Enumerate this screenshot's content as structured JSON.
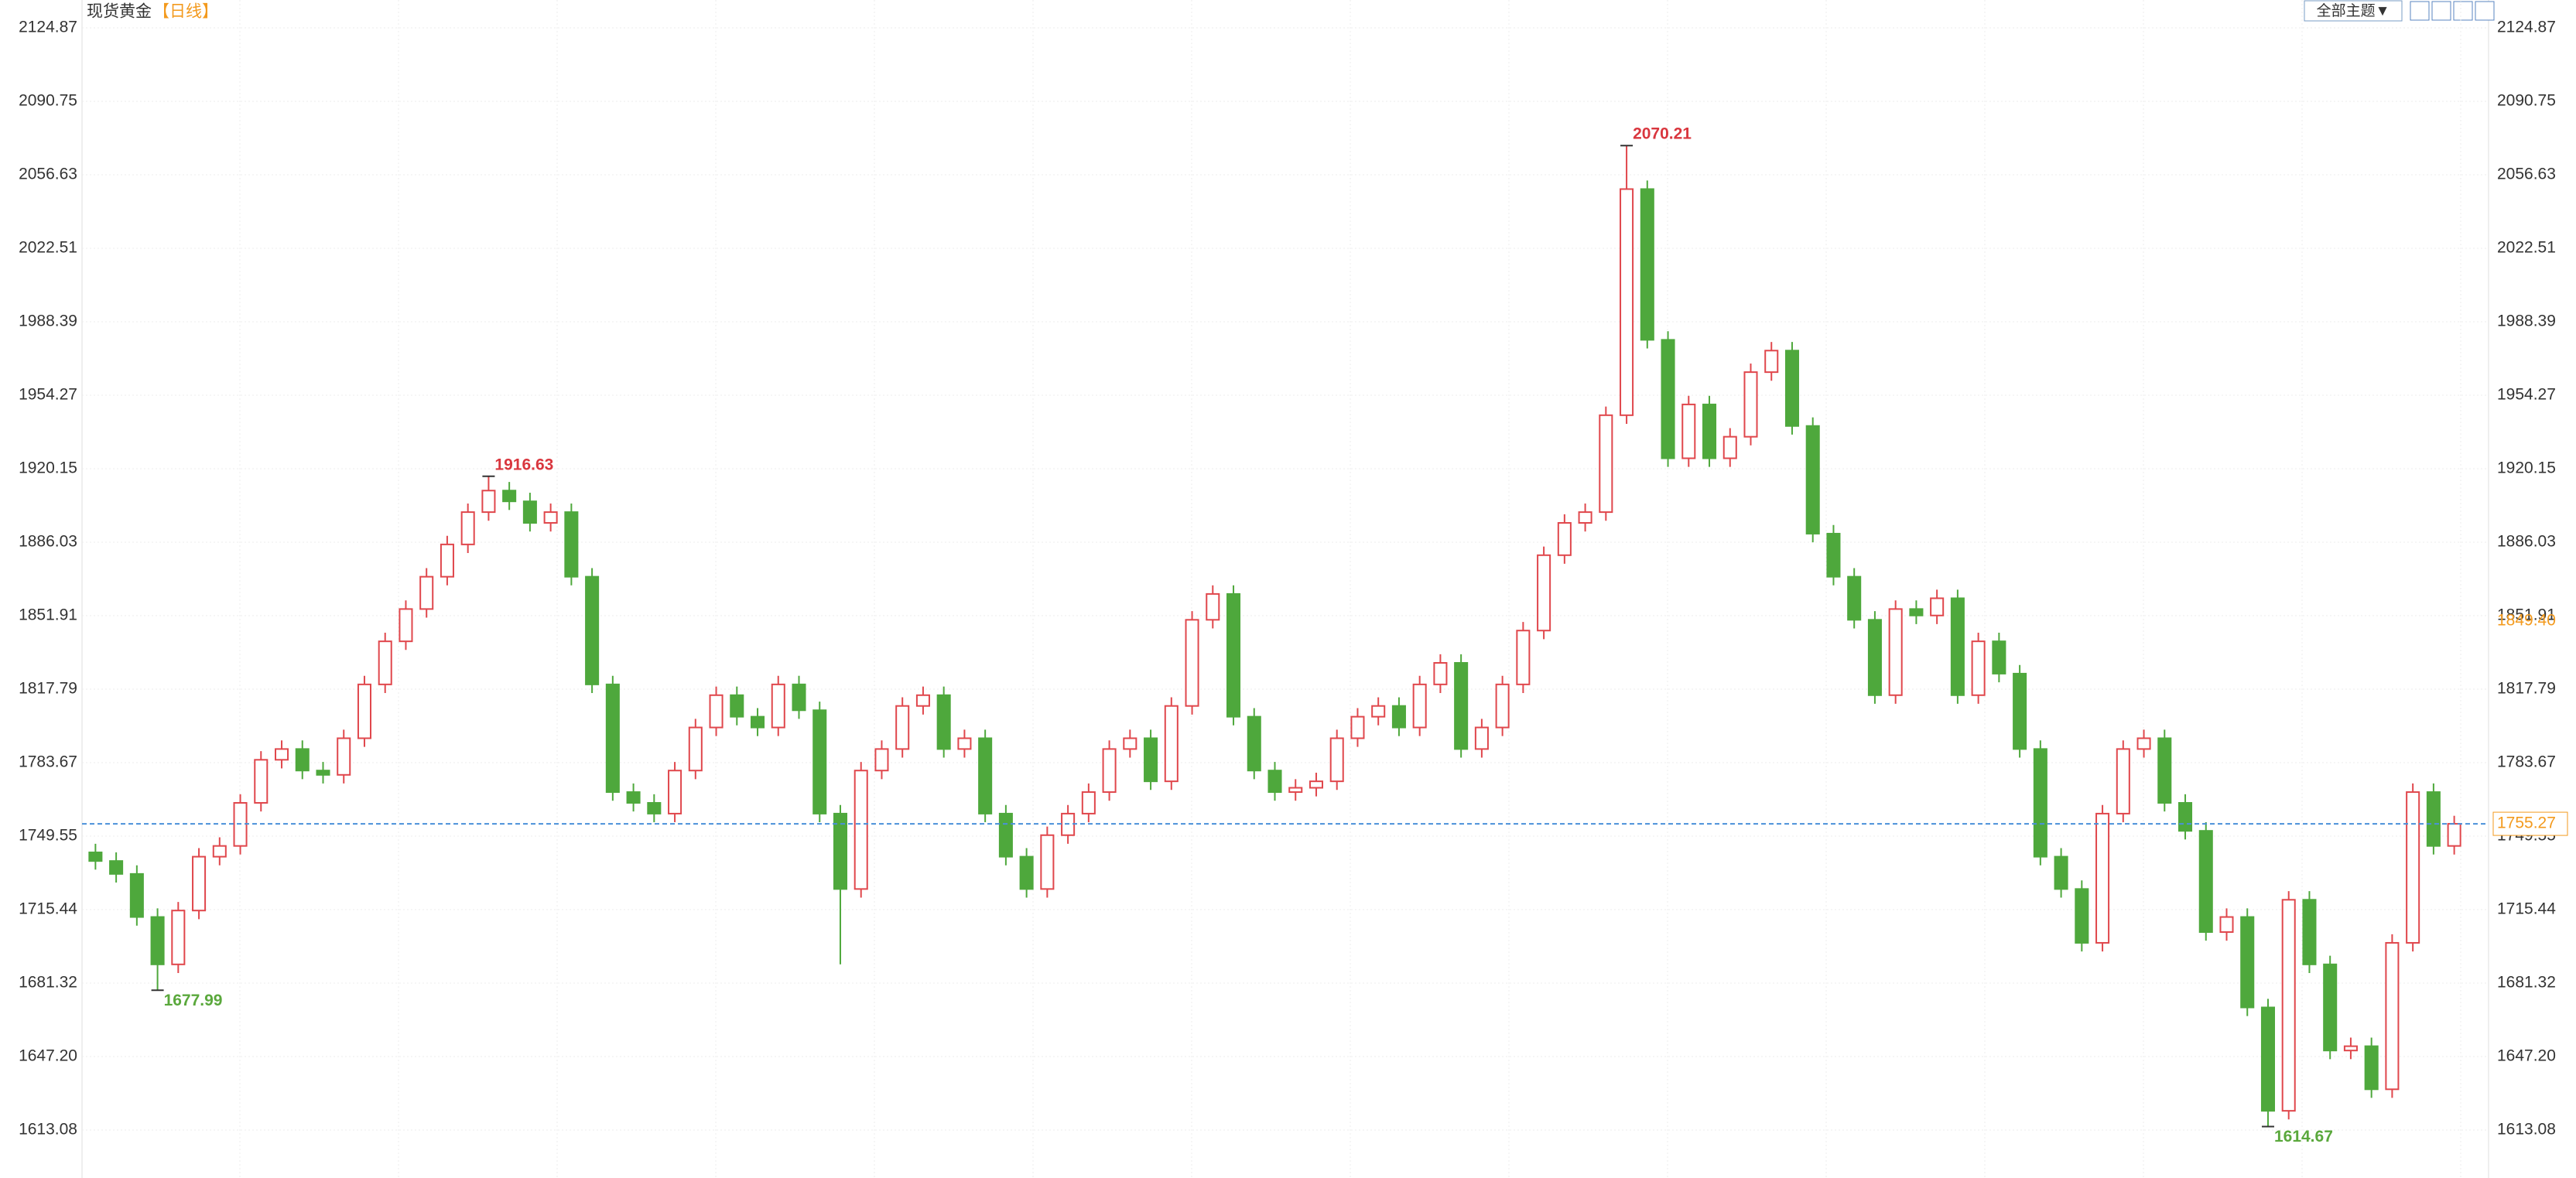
{
  "chart_data": {
    "type": "candlestick",
    "title": "现货黄金",
    "subtitle": "【日线】",
    "up_color": "#e0474c",
    "down_color": "#4ea83c",
    "price_line_color": "#4a90d9",
    "label_color": "#f39a1e",
    "ylim": [
      1592.6,
      2137.8
    ],
    "yticks": [
      2124.87,
      2090.75,
      2056.63,
      2022.51,
      1988.39,
      1954.27,
      1920.15,
      1886.03,
      1851.91,
      1817.79,
      1783.67,
      1749.55,
      1715.44,
      1681.32,
      {
        "value": 1647.2,
        "label": "1647.20"
      },
      1613.08
    ],
    "grid": true,
    "indicator_marker": {
      "value": 1849.4,
      "label": "1849.40"
    },
    "open": [
      1742,
      1738,
      1732,
      1712,
      1690,
      1715,
      1740,
      1745,
      1765,
      1785,
      1790,
      1780,
      1778,
      1795,
      1820,
      1840,
      1855,
      1870,
      1885,
      1900,
      1910,
      1905,
      1895,
      1900,
      1870,
      1820,
      1770,
      1765,
      1760,
      1780,
      1800,
      1815,
      1805,
      1800,
      1820,
      1808,
      1760,
      1725,
      1780,
      1790,
      1810,
      1815,
      1790,
      1795,
      1760,
      1740,
      1725,
      1750,
      1760,
      1770,
      1790,
      1795,
      1775,
      1810,
      1850,
      1862,
      1805,
      1780,
      1770,
      1772,
      1775,
      1795,
      1805,
      1810,
      1800,
      1820,
      1830,
      1790,
      1800,
      1820,
      1845,
      1880,
      1895,
      1900,
      1945,
      2050,
      1980,
      1925,
      1950,
      1925,
      1935,
      1965,
      1975,
      1940,
      1890,
      1870,
      1850,
      1815,
      1855,
      1852,
      1860,
      1815,
      1840,
      1825,
      1790,
      1740,
      1725,
      1700,
      1760,
      1790,
      1795,
      1765,
      1752,
      1705,
      1712,
      1670,
      1622,
      1720,
      1690,
      1650,
      1652,
      1632,
      1700,
      1770,
      1745
    ],
    "high": [
      1746,
      1742,
      1736,
      1716,
      1719,
      1744,
      1749,
      1769,
      1789,
      1794,
      1794,
      1784,
      1799,
      1824,
      1844,
      1859,
      1874,
      1889,
      1904,
      1916.63,
      1914,
      1909,
      1904,
      1904,
      1874,
      1824,
      1774,
      1769,
      1784,
      1804,
      1819,
      1819,
      1809,
      1824,
      1824,
      1812,
      1764,
      1784,
      1794,
      1814,
      1819,
      1819,
      1799,
      1799,
      1764,
      1744,
      1754,
      1764,
      1774,
      1794,
      1799,
      1799,
      1814,
      1854,
      1866,
      1866,
      1809,
      1784,
      1776,
      1779,
      1799,
      1809,
      1814,
      1814,
      1824,
      1834,
      1834,
      1804,
      1824,
      1849,
      1884,
      1899,
      1904,
      1949,
      2070.21,
      2054,
      1984,
      1954,
      1954,
      1939,
      1969,
      1979,
      1979,
      1944,
      1894,
      1874,
      1854,
      1859,
      1859,
      1864,
      1864,
      1844,
      1844,
      1829,
      1794,
      1744,
      1729,
      1764,
      1794,
      1799,
      1799,
      1769,
      1756,
      1716,
      1716,
      1674,
      1724,
      1724,
      1694,
      1656,
      1656,
      1704,
      1774,
      1774,
      1759
    ],
    "low": [
      1734,
      1728,
      1708,
      1677.99,
      1686,
      1711,
      1736,
      1741,
      1761,
      1781,
      1776,
      1774,
      1774,
      1791,
      1816,
      1836,
      1851,
      1866,
      1881,
      1896,
      1901,
      1891,
      1891,
      1866,
      1816,
      1766,
      1761,
      1756,
      1756,
      1776,
      1796,
      1801,
      1796,
      1796,
      1804,
      1756,
      1690,
      1721,
      1776,
      1786,
      1806,
      1786,
      1786,
      1756,
      1736,
      1721,
      1721,
      1746,
      1756,
      1766,
      1786,
      1771,
      1771,
      1806,
      1846,
      1801,
      1776,
      1766,
      1766,
      1768,
      1771,
      1791,
      1801,
      1796,
      1796,
      1816,
      1786,
      1786,
      1796,
      1816,
      1841,
      1876,
      1891,
      1896,
      1941,
      1976,
      1921,
      1921,
      1921,
      1921,
      1931,
      1961,
      1936,
      1886,
      1866,
      1846,
      1811,
      1811,
      1848,
      1848,
      1811,
      1811,
      1821,
      1786,
      1736,
      1721,
      1696,
      1696,
      1756,
      1786,
      1761,
      1748,
      1701,
      1701,
      1666,
      1614.67,
      1618,
      1686,
      1646,
      1646,
      1628,
      1628,
      1696,
      1741,
      1741
    ],
    "close": [
      1738,
      1732,
      1712,
      1690,
      1715,
      1740,
      1745,
      1765,
      1785,
      1790,
      1780,
      1778,
      1795,
      1820,
      1840,
      1855,
      1870,
      1885,
      1900,
      1910,
      1905,
      1895,
      1900,
      1870,
      1820,
      1770,
      1765,
      1760,
      1780,
      1800,
      1815,
      1805,
      1800,
      1820,
      1808,
      1760,
      1725,
      1780,
      1790,
      1810,
      1815,
      1790,
      1795,
      1760,
      1740,
      1725,
      1750,
      1760,
      1770,
      1790,
      1795,
      1775,
      1810,
      1850,
      1862,
      1805,
      1780,
      1770,
      1772,
      1775,
      1795,
      1805,
      1810,
      1800,
      1820,
      1830,
      1790,
      1800,
      1820,
      1845,
      1880,
      1895,
      1900,
      1945,
      2050,
      1980,
      1925,
      1950,
      1925,
      1935,
      1965,
      1975,
      1940,
      1890,
      1870,
      1850,
      1815,
      1855,
      1852,
      1860,
      1815,
      1840,
      1825,
      1790,
      1740,
      1725,
      1700,
      1760,
      1790,
      1795,
      1765,
      1752,
      1705,
      1712,
      1670,
      1622,
      1720,
      1690,
      1650,
      1652,
      1632,
      1700,
      1770,
      1745,
      1755.27
    ]
  },
  "toolbar": {
    "theme_button": "全部主题▼"
  }
}
